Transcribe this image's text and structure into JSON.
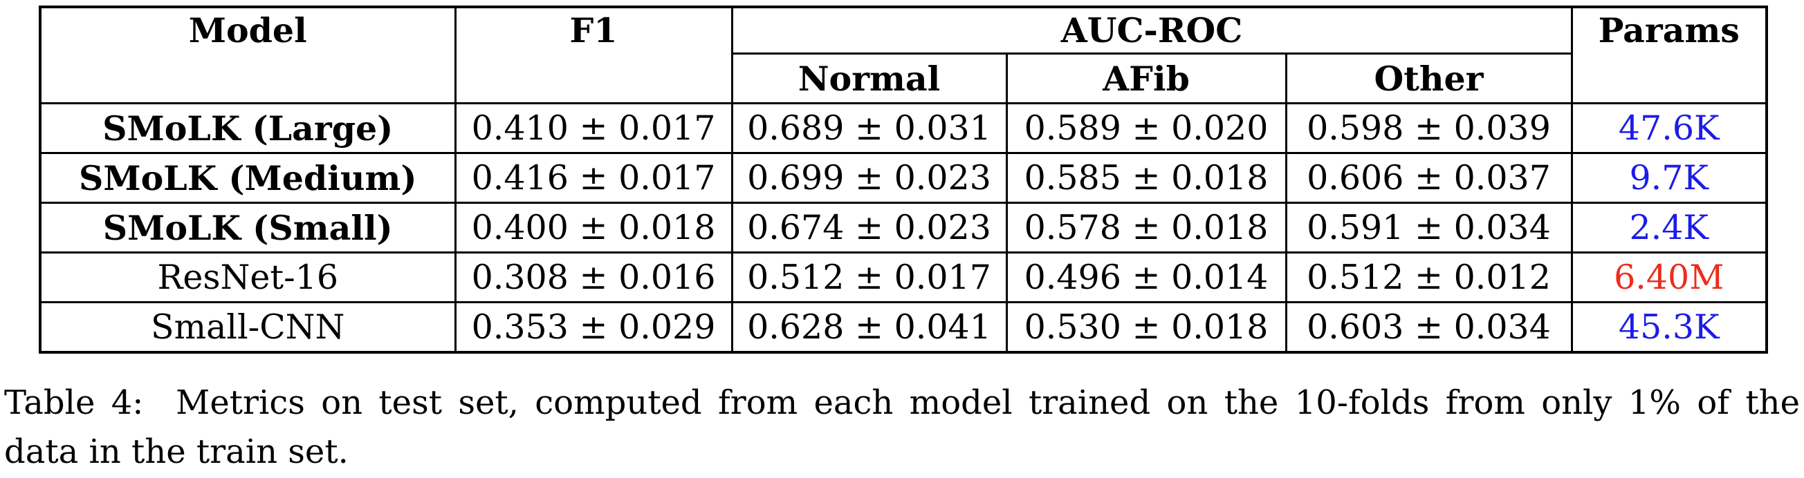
{
  "colors": {
    "params_blue": "#1c1ce8",
    "params_red": "#eb2d1e",
    "text": "#000000",
    "background": "#ffffff"
  },
  "table": {
    "headers": {
      "model": "Model",
      "f1": "F1",
      "auc_roc": "AUC-ROC",
      "normal": "Normal",
      "afib": "AFib",
      "other": "Other",
      "params": "Params"
    },
    "rows": [
      {
        "model": "SMoLK (Large)",
        "bold": true,
        "f1": "0.410 ± 0.017",
        "normal": "0.689 ± 0.031",
        "afib": "0.589 ± 0.020",
        "other": "0.598 ± 0.039",
        "params": "47.6K",
        "params_color": "#1c1ce8"
      },
      {
        "model": "SMoLK (Medium)",
        "bold": true,
        "f1": "0.416 ± 0.017",
        "normal": "0.699 ± 0.023",
        "afib": "0.585 ± 0.018",
        "other": "0.606 ± 0.037",
        "params": "9.7K",
        "params_color": "#1c1ce8"
      },
      {
        "model": "SMoLK (Small)",
        "bold": true,
        "f1": "0.400 ± 0.018",
        "normal": "0.674 ± 0.023",
        "afib": "0.578 ± 0.018",
        "other": "0.591 ± 0.034",
        "params": "2.4K",
        "params_color": "#1c1ce8"
      },
      {
        "model": "ResNet-16",
        "bold": false,
        "f1": "0.308 ± 0.016",
        "normal": "0.512 ± 0.017",
        "afib": "0.496 ± 0.014",
        "other": "0.512 ± 0.012",
        "params": "6.40M",
        "params_color": "#eb2d1e"
      },
      {
        "model": "Small-CNN",
        "bold": false,
        "f1": "0.353 ± 0.029",
        "normal": "0.628 ± 0.041",
        "afib": "0.530 ± 0.018",
        "other": "0.603 ± 0.034",
        "params": "45.3K",
        "params_color": "#1c1ce8"
      }
    ]
  },
  "document": {
    "caption_line1": "Table 4:  Metrics on test set, computed from each model trained on the 10-folds from only 1% of the",
    "caption_line2": "data in the train set."
  }
}
